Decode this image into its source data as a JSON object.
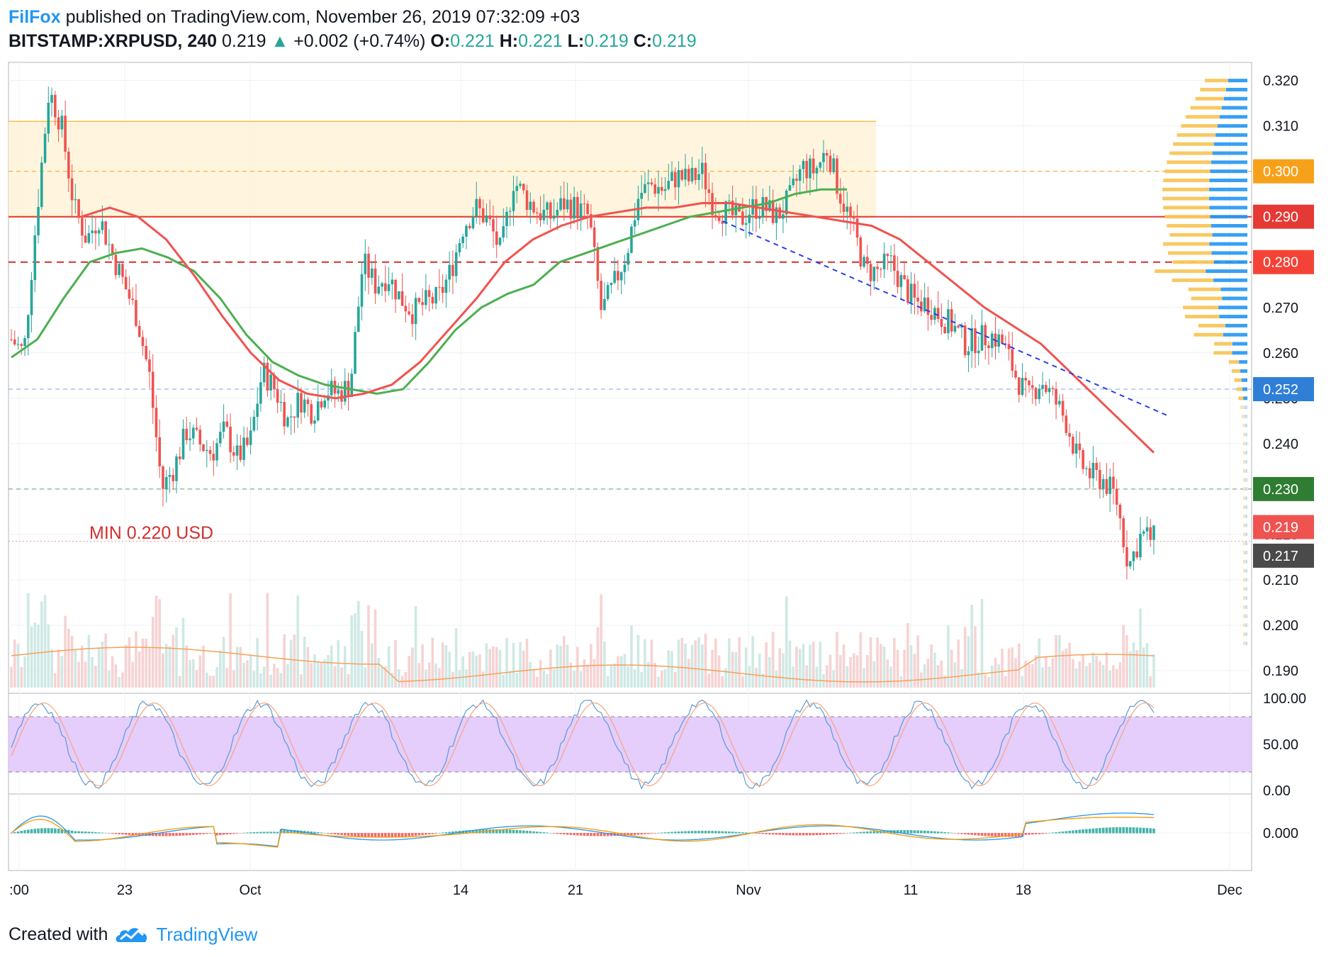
{
  "header": {
    "author": "FilFox",
    "published_text": "published on TradingView.com, November 26, 2019 07:32:09 +03",
    "symbol": "BITSTAMP:XRPUSD, 240",
    "last": "0.219",
    "arrow": "▲",
    "change": "+0.002 (+0.74%)",
    "o_label": "O:",
    "o_value": "0.221",
    "h_label": "H:",
    "h_value": "0.221",
    "l_label": "L:",
    "l_value": "0.219",
    "c_label": "C:",
    "c_value": "0.219"
  },
  "footer": {
    "created_with": "Created with",
    "brand": "TradingView"
  },
  "colors": {
    "up": "#26a69a",
    "down": "#ef5350",
    "zone": "#fff3d6",
    "zone_line": "#f5c242",
    "ma_green": "#4caf50",
    "ma_red": "#ef5350",
    "volume_profile_up": "#f8c65a",
    "volume_profile_blue": "#2196f3",
    "stoch_band": "#e1c4fb"
  },
  "chart_data": {
    "type": "candlestick",
    "symbol": "BITSTAMP:XRPUSD",
    "timeframe": "240",
    "x_ticks": [
      ":00",
      "23",
      "Oct",
      "14",
      "21",
      "Nov",
      "11",
      "18",
      "Dec"
    ],
    "y_ticks": [
      "0.320",
      "0.310",
      "0.300",
      "0.290",
      "0.280",
      "0.270",
      "0.260",
      "0.250",
      "0.240",
      "0.230",
      "0.220",
      "0.210",
      "0.200",
      "0.190"
    ],
    "ylim": [
      0.185,
      0.324
    ],
    "price_tags": [
      {
        "value": 0.3,
        "label": "0.300",
        "color": "#f7a11a"
      },
      {
        "value": 0.29,
        "label": "0.290",
        "color": "#e53935"
      },
      {
        "value": 0.28,
        "label": "0.280",
        "color": "#f44336"
      },
      {
        "value": 0.252,
        "label": "0.252",
        "color": "#2f7fd6"
      },
      {
        "value": 0.23,
        "label": "0.230",
        "color": "#2e7d32"
      },
      {
        "value": 0.219,
        "label": "0.219",
        "color": "#ef5350"
      },
      {
        "value": 0.217,
        "label": "0.217",
        "color": "#4a4a4a"
      }
    ],
    "annotation": "MIN 0.220 USD",
    "zone": {
      "low": 0.29,
      "high": 0.311
    },
    "price_path": [
      0.263,
      0.26,
      0.29,
      0.318,
      0.31,
      0.292,
      0.285,
      0.29,
      0.282,
      0.275,
      0.268,
      0.255,
      0.23,
      0.235,
      0.243,
      0.24,
      0.238,
      0.243,
      0.237,
      0.24,
      0.256,
      0.252,
      0.245,
      0.25,
      0.247,
      0.252,
      0.251,
      0.253,
      0.28,
      0.275,
      0.277,
      0.272,
      0.269,
      0.271,
      0.272,
      0.278,
      0.288,
      0.292,
      0.289,
      0.282,
      0.298,
      0.294,
      0.291,
      0.29,
      0.293,
      0.292,
      0.29,
      0.269,
      0.275,
      0.282,
      0.295,
      0.297,
      0.296,
      0.299,
      0.298,
      0.3,
      0.292,
      0.291,
      0.289,
      0.292,
      0.292,
      0.29,
      0.294,
      0.301,
      0.3,
      0.305,
      0.295,
      0.288,
      0.278,
      0.278,
      0.28,
      0.275,
      0.271,
      0.271,
      0.268,
      0.266,
      0.262,
      0.263,
      0.264,
      0.262,
      0.255,
      0.25,
      0.254,
      0.25,
      0.245,
      0.236,
      0.233,
      0.232,
      0.228,
      0.213,
      0.22,
      0.219
    ],
    "ma_green": [
      0.259,
      0.263,
      0.272,
      0.28,
      0.282,
      0.283,
      0.281,
      0.278,
      0.272,
      0.264,
      0.258,
      0.255,
      0.253,
      0.252,
      0.251,
      0.252,
      0.258,
      0.265,
      0.27,
      0.273,
      0.275,
      0.28,
      0.282,
      0.284,
      0.286,
      0.288,
      0.29,
      0.291,
      0.292,
      0.293,
      0.295,
      0.296,
      0.296
    ],
    "ma_red": [
      0.29,
      0.292,
      0.29,
      0.285,
      0.277,
      0.268,
      0.26,
      0.254,
      0.251,
      0.25,
      0.251,
      0.253,
      0.258,
      0.265,
      0.272,
      0.28,
      0.285,
      0.288,
      0.29,
      0.291,
      0.292,
      0.292,
      0.293,
      0.293,
      0.292,
      0.291,
      0.29,
      0.289,
      0.288,
      0.285,
      0.28,
      0.275,
      0.27,
      0.266,
      0.262,
      0.256,
      0.25,
      0.244,
      0.238
    ],
    "trendline": {
      "from": {
        "date": "Oct 29",
        "value": 0.289
      },
      "to": {
        "date": "Nov 24",
        "value": 0.246
      }
    },
    "stochastic": {
      "ticks": [
        "100.00",
        "50.00",
        "0.00"
      ],
      "band": [
        20,
        80
      ]
    },
    "macd": {
      "ticks": [
        "0.000"
      ]
    }
  }
}
